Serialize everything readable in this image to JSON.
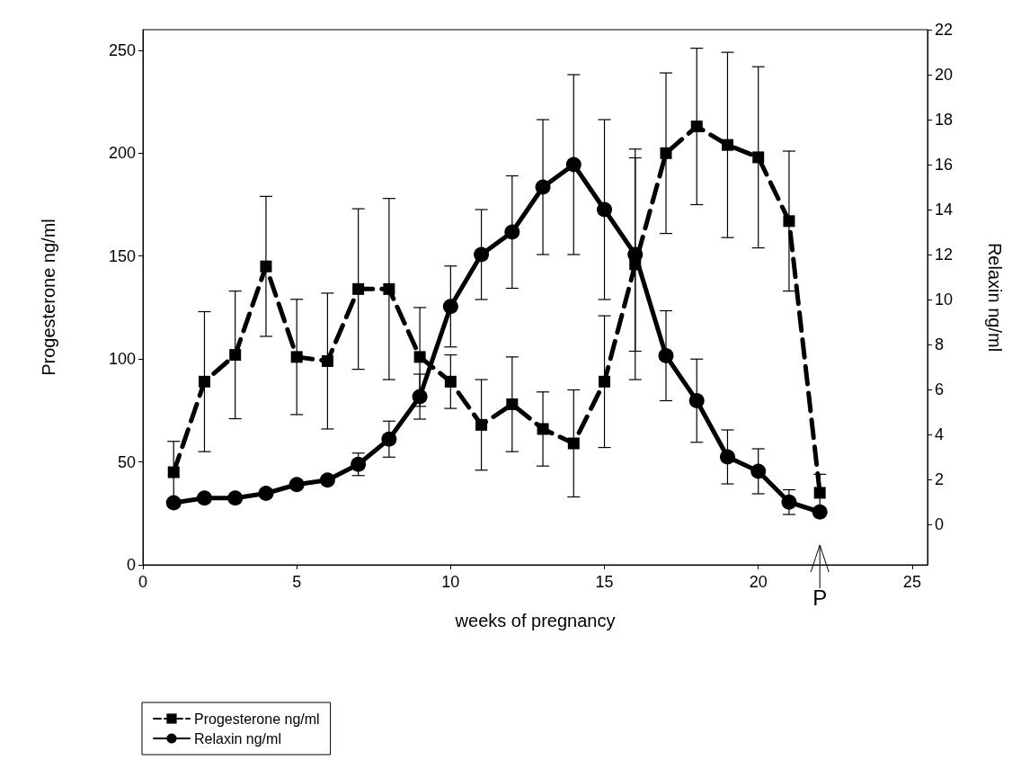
{
  "chart_data": {
    "type": "line",
    "xlabel": "weeks of pregnancy",
    "ylabel": "Progesterone ng/ml",
    "y2label": "Relaxin ng/ml",
    "x": [
      1,
      2,
      3,
      4,
      5,
      6,
      7,
      8,
      9,
      10,
      11,
      12,
      13,
      14,
      15,
      16,
      17,
      18,
      19,
      20,
      21,
      22
    ],
    "xlim": [
      0,
      25.5
    ],
    "xticks": [
      0,
      5,
      10,
      15,
      20,
      25
    ],
    "ylim": [
      0,
      260
    ],
    "yticks": [
      0,
      50,
      100,
      150,
      200,
      250
    ],
    "y2lim": [
      -1.8,
      22
    ],
    "y2ticks": [
      0,
      2,
      4,
      6,
      8,
      10,
      12,
      14,
      16,
      18,
      20,
      22
    ],
    "series": [
      {
        "name": "Progesterone ng/ml",
        "color": "#000000",
        "marker": "square",
        "line_style": "dashed",
        "values": [
          45,
          89,
          102,
          145,
          101,
          99,
          134,
          134,
          101,
          89,
          68,
          78,
          66,
          59,
          89,
          146,
          200,
          213,
          204,
          198,
          167,
          35
        ],
        "errors": [
          15,
          34,
          31,
          34,
          28,
          33,
          39,
          44,
          24,
          13,
          22,
          23,
          18,
          26,
          32,
          56,
          39,
          38,
          45,
          44,
          34,
          9
        ]
      },
      {
        "name": "Relaxin ng/ml",
        "color": "#000000",
        "marker": "circle",
        "line_style": "solid",
        "axis": "y2",
        "values": [
          0.96,
          1.17,
          1.17,
          1.38,
          1.77,
          1.97,
          2.67,
          3.79,
          5.68,
          9.69,
          12.0,
          13.0,
          15.0,
          16.0,
          14.0,
          12.0,
          7.5,
          5.5,
          3.0,
          2.36,
          0.99,
          0.55
        ],
        "errors": [
          null,
          null,
          null,
          null,
          null,
          null,
          0.5,
          0.8,
          1.0,
          1.8,
          2.0,
          2.5,
          3.0,
          4.0,
          4.0,
          4.3,
          2.0,
          1.85,
          1.2,
          1.0,
          0.55,
          null
        ]
      }
    ],
    "annotations": [
      {
        "text": "P",
        "x": 22
      }
    ],
    "legend": "bottom left",
    "grid": false
  }
}
